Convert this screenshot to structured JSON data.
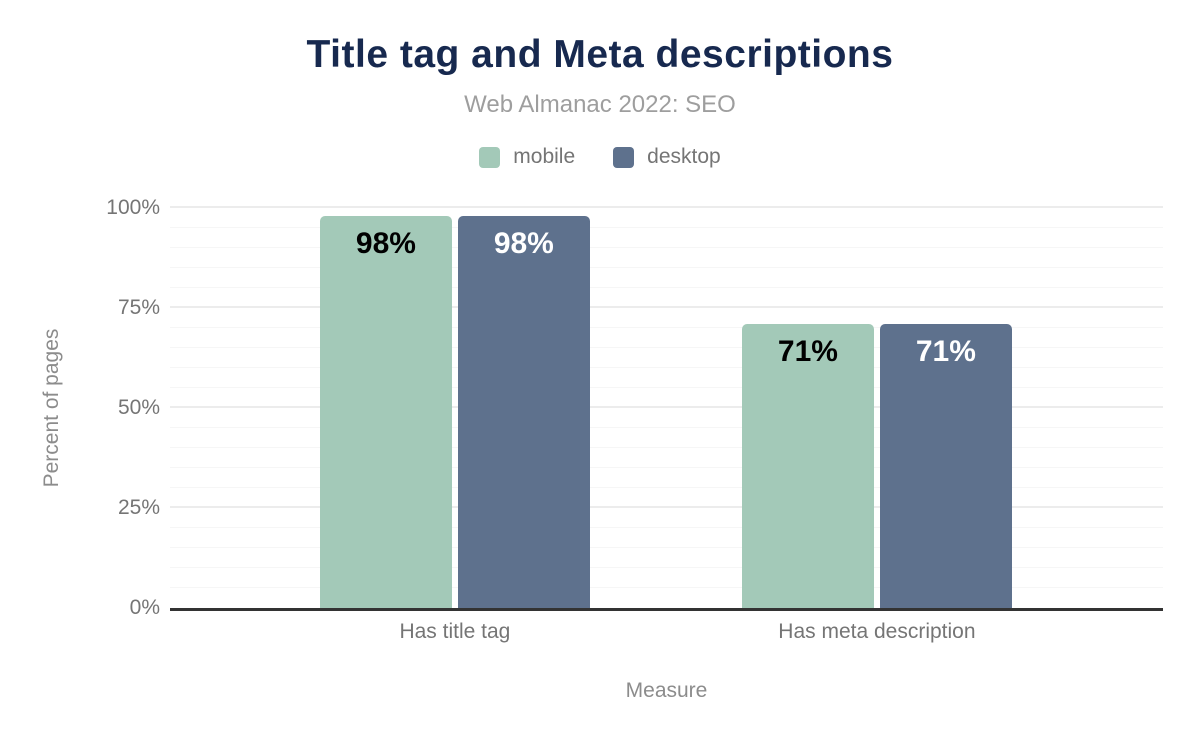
{
  "header": {
    "title": "Title tag and Meta descriptions",
    "subtitle": "Web Almanac 2022: SEO"
  },
  "legend": {
    "items": [
      {
        "label": "mobile",
        "color": "#a3c9b8"
      },
      {
        "label": "desktop",
        "color": "#5e718d"
      }
    ]
  },
  "chart_data": {
    "type": "bar",
    "title": "Title tag and Meta descriptions",
    "subtitle": "Web Almanac 2022: SEO",
    "categories": [
      "Has title tag",
      "Has meta description"
    ],
    "series": [
      {
        "name": "mobile",
        "values": [
          98,
          71
        ],
        "value_labels": [
          "98%",
          "71%"
        ],
        "color": "#a3c9b8",
        "label_color": "#000000"
      },
      {
        "name": "desktop",
        "values": [
          98,
          71
        ],
        "value_labels": [
          "98%",
          "71%"
        ],
        "color": "#5e718d",
        "label_color": "#ffffff"
      }
    ],
    "xlabel": "Measure",
    "ylabel": "Percent of pages",
    "ylim": [
      0,
      100
    ],
    "yticks": [
      {
        "value": 0,
        "label": "0%"
      },
      {
        "value": 25,
        "label": "25%"
      },
      {
        "value": 50,
        "label": "50%"
      },
      {
        "value": 75,
        "label": "75%"
      },
      {
        "value": 100,
        "label": "100%"
      }
    ],
    "grid": {
      "minor_step": 5,
      "major_step": 25,
      "minor_color": "#f6f6f6",
      "major_color": "#ececec"
    },
    "legend_position": "top",
    "axis_line_color": "#333333"
  },
  "colors": {
    "title": "#17294f",
    "subtitle": "#9e9e9e",
    "tick_label": "#757575",
    "axis_title": "#8c8c8c",
    "background": "#ffffff"
  }
}
